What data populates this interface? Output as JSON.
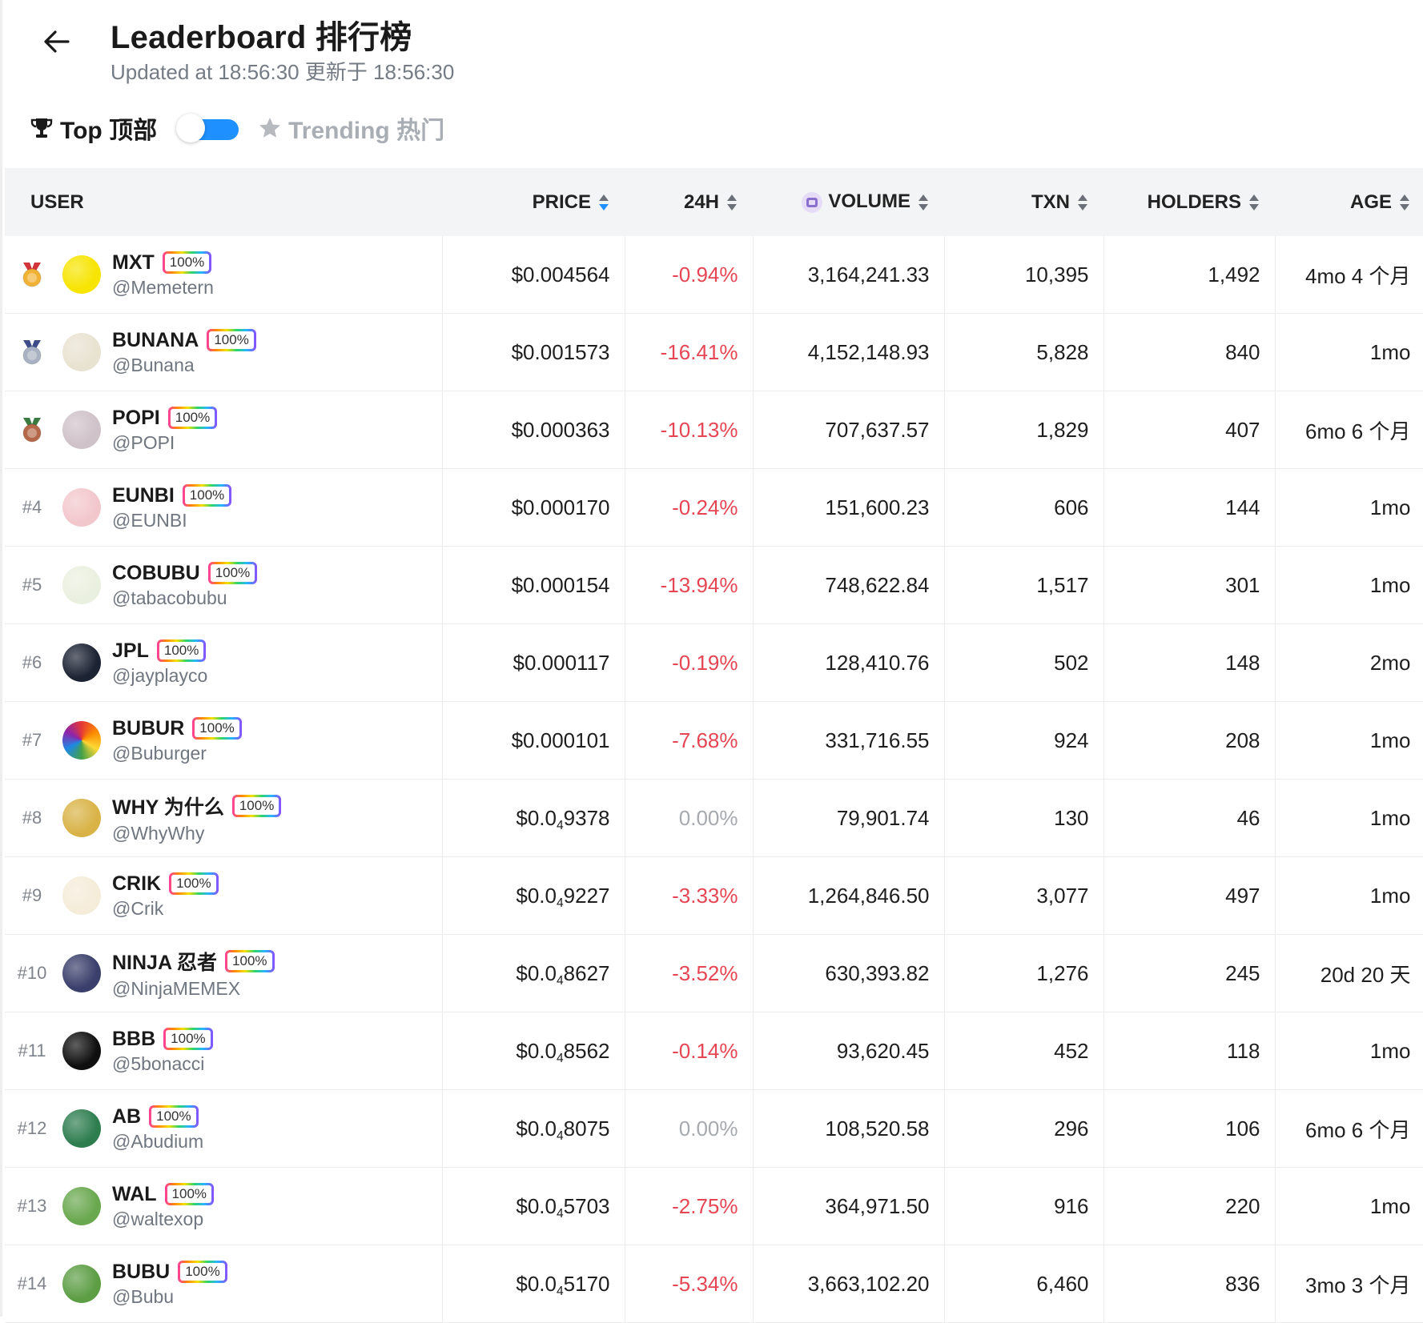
{
  "header": {
    "title": "Leaderboard 排行榜",
    "updated": "Updated at 18:56:30 更新于 18:56:30"
  },
  "filters": {
    "top_label": "Top 顶部",
    "trending_label": "Trending 热门",
    "switch_state": "top"
  },
  "columns": {
    "user": "USER",
    "price": "PRICE",
    "change": "24H",
    "volume": "VOLUME",
    "txn": "TXN",
    "holders": "HOLDERS",
    "age": "AGE"
  },
  "colors": {
    "accent": "#1e90ff",
    "negative": "#e64553",
    "neutral": "#a6a9ae"
  },
  "rows": [
    {
      "rank": "1",
      "medal": "gold-medal-icon",
      "name": "MXT",
      "badge": "100%",
      "handle": "@Memetern",
      "price": "$0.004564",
      "change": "-0.94%",
      "change_kind": "neg",
      "volume": "3,164,241.33",
      "txn": "10,395",
      "holders": "1,492",
      "age": "4mo 4 个月",
      "avatar": "#f7e400"
    },
    {
      "rank": "2",
      "medal": "silver-medal-icon",
      "name": "BUNANA",
      "badge": "100%",
      "handle": "@Bunana",
      "price": "$0.001573",
      "change": "-16.41%",
      "change_kind": "neg",
      "volume": "4,152,148.93",
      "txn": "5,828",
      "holders": "840",
      "age": "1mo",
      "avatar": "#e8e2d0"
    },
    {
      "rank": "3",
      "medal": "bronze-medal-icon",
      "name": "POPI",
      "badge": "100%",
      "handle": "@POPI",
      "price": "$0.000363",
      "change": "-10.13%",
      "change_kind": "neg",
      "volume": "707,637.57",
      "txn": "1,829",
      "holders": "407",
      "age": "6mo 6 个月",
      "avatar": "#cfc2c8"
    },
    {
      "rank": "#4",
      "name": "EUNBI",
      "badge": "100%",
      "handle": "@EUNBI",
      "price": "$0.000170",
      "change": "-0.24%",
      "change_kind": "neg",
      "volume": "151,600.23",
      "txn": "606",
      "holders": "144",
      "age": "1mo",
      "avatar": "#f2c7cc"
    },
    {
      "rank": "#5",
      "name": "COBUBU",
      "badge": "100%",
      "handle": "@tabacobubu",
      "price": "$0.000154",
      "change": "-13.94%",
      "change_kind": "neg",
      "volume": "748,622.84",
      "txn": "1,517",
      "holders": "301",
      "age": "1mo",
      "avatar": "#eaf0e0"
    },
    {
      "rank": "#6",
      "name": "JPL",
      "badge": "100%",
      "handle": "@jayplayco",
      "price": "$0.000117",
      "change": "-0.19%",
      "change_kind": "neg",
      "volume": "128,410.76",
      "txn": "502",
      "holders": "148",
      "age": "2mo",
      "avatar": "#1c2333"
    },
    {
      "rank": "#7",
      "name": "BUBUR",
      "badge": "100%",
      "handle": "@Buburger",
      "price": "$0.000101",
      "change": "-7.68%",
      "change_kind": "neg",
      "volume": "331,716.55",
      "txn": "924",
      "holders": "208",
      "age": "1mo",
      "avatar": "rainbow"
    },
    {
      "rank": "#8",
      "name": "WHY 为什么",
      "badge": "100%",
      "handle": "@WhyWhy",
      "price_main": "$0.0",
      "price_sub": "4",
      "price_tail": "9378",
      "change": "0.00%",
      "change_kind": "zero",
      "volume": "79,901.74",
      "txn": "130",
      "holders": "46",
      "age": "1mo",
      "avatar": "#d9b347"
    },
    {
      "rank": "#9",
      "name": "CRIK",
      "badge": "100%",
      "handle": "@Crik",
      "price_main": "$0.0",
      "price_sub": "4",
      "price_tail": "9227",
      "change": "-3.33%",
      "change_kind": "neg",
      "volume": "1,264,846.50",
      "txn": "3,077",
      "holders": "497",
      "age": "1mo",
      "avatar": "#f5ecd9"
    },
    {
      "rank": "#10",
      "name": "NINJA 忍者",
      "badge": "100%",
      "handle": "@NinjaMEMEX",
      "price_main": "$0.0",
      "price_sub": "4",
      "price_tail": "8627",
      "change": "-3.52%",
      "change_kind": "neg",
      "volume": "630,393.82",
      "txn": "1,276",
      "holders": "245",
      "age": "20d 20 天",
      "avatar": "#3a3f6b"
    },
    {
      "rank": "#11",
      "name": "BBB",
      "badge": "100%",
      "handle": "@5bonacci",
      "price_main": "$0.0",
      "price_sub": "4",
      "price_tail": "8562",
      "change": "-0.14%",
      "change_kind": "neg",
      "volume": "93,620.45",
      "txn": "452",
      "holders": "118",
      "age": "1mo",
      "avatar": "#0f0f0f"
    },
    {
      "rank": "#12",
      "name": "AB",
      "badge": "100%",
      "handle": "@Abudium",
      "price_main": "$0.0",
      "price_sub": "4",
      "price_tail": "8075",
      "change": "0.00%",
      "change_kind": "zero",
      "volume": "108,520.58",
      "txn": "296",
      "holders": "106",
      "age": "6mo 6 个月",
      "avatar": "#2e7d4f"
    },
    {
      "rank": "#13",
      "name": "WAL",
      "badge": "100%",
      "handle": "@waltexop",
      "price_main": "$0.0",
      "price_sub": "4",
      "price_tail": "5703",
      "change": "-2.75%",
      "change_kind": "neg",
      "volume": "364,971.50",
      "txn": "916",
      "holders": "220",
      "age": "1mo",
      "avatar": "#6aa84f"
    },
    {
      "rank": "#14",
      "name": "BUBU",
      "badge": "100%",
      "handle": "@Bubu",
      "price_main": "$0.0",
      "price_sub": "4",
      "price_tail": "5170",
      "change": "-5.34%",
      "change_kind": "neg",
      "volume": "3,663,102.20",
      "txn": "6,460",
      "holders": "836",
      "age": "3mo 3 个月",
      "avatar": "#5d9e45"
    }
  ]
}
